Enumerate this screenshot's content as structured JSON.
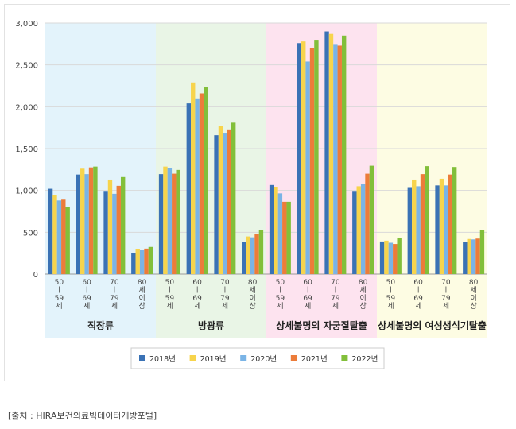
{
  "chart_data": {
    "type": "bar",
    "ylim": [
      0,
      3000
    ],
    "yticks": [
      "0",
      "500",
      "1,000",
      "1,500",
      "2,000",
      "2,500",
      "3,000"
    ],
    "ytick_values": [
      0,
      500,
      1000,
      1500,
      2000,
      2500,
      3000
    ],
    "grid": true,
    "legend_position": "bottom",
    "groups": [
      {
        "label": "직장류",
        "bg": "#e3f3fb",
        "categories": [
          {
            "lines": [
              "50",
              "ㅣ",
              "59",
              "세"
            ]
          },
          {
            "lines": [
              "60",
              "ㅣ",
              "69",
              "세"
            ]
          },
          {
            "lines": [
              "70",
              "ㅣ",
              "79",
              "세"
            ]
          },
          {
            "lines": [
              "80",
              "세",
              "이",
              "상"
            ]
          }
        ]
      },
      {
        "label": "방광류",
        "bg": "#e9f5e6",
        "categories": [
          {
            "lines": [
              "50",
              "ㅣ",
              "59",
              "세"
            ]
          },
          {
            "lines": [
              "60",
              "ㅣ",
              "69",
              "세"
            ]
          },
          {
            "lines": [
              "70",
              "ㅣ",
              "79",
              "세"
            ]
          },
          {
            "lines": [
              "80",
              "세",
              "이",
              "상"
            ]
          }
        ]
      },
      {
        "label": "상세불명의 자궁질탈출",
        "bg": "#fde3ef",
        "categories": [
          {
            "lines": [
              "50",
              "ㅣ",
              "59",
              "세"
            ]
          },
          {
            "lines": [
              "60",
              "ㅣ",
              "69",
              "세"
            ]
          },
          {
            "lines": [
              "70",
              "ㅣ",
              "79",
              "세"
            ]
          },
          {
            "lines": [
              "80",
              "세",
              "이",
              "상"
            ]
          }
        ]
      },
      {
        "label": "상세불명의 여성생식기탈출",
        "bg": "#fdfce3",
        "categories": [
          {
            "lines": [
              "50",
              "ㅣ",
              "59",
              "세"
            ]
          },
          {
            "lines": [
              "60",
              "ㅣ",
              "69",
              "세"
            ]
          },
          {
            "lines": [
              "70",
              "ㅣ",
              "79",
              "세"
            ]
          },
          {
            "lines": [
              "80",
              "세",
              "이",
              "상"
            ]
          }
        ]
      }
    ],
    "series": [
      {
        "name": "2018년",
        "color": "#3a72b5",
        "values": [
          1020,
          1190,
          985,
          255,
          1195,
          2040,
          1660,
          380,
          1065,
          2760,
          2900,
          985,
          390,
          1030,
          1060,
          380
        ]
      },
      {
        "name": "2019년",
        "color": "#f7d44c",
        "values": [
          945,
          1260,
          1130,
          295,
          1285,
          2290,
          1770,
          450,
          1040,
          2780,
          2870,
          1050,
          400,
          1130,
          1140,
          420
        ]
      },
      {
        "name": "2020년",
        "color": "#7ab4e6",
        "values": [
          880,
          1195,
          960,
          285,
          1270,
          2100,
          1680,
          440,
          965,
          2540,
          2740,
          1080,
          375,
          1050,
          1060,
          415
        ]
      },
      {
        "name": "2021년",
        "color": "#ec7c3a",
        "values": [
          890,
          1275,
          1055,
          305,
          1200,
          2160,
          1720,
          480,
          865,
          2700,
          2730,
          1200,
          360,
          1195,
          1190,
          425
        ]
      },
      {
        "name": "2022년",
        "color": "#82bf3a",
        "values": [
          805,
          1285,
          1160,
          325,
          1245,
          2240,
          1810,
          530,
          865,
          2800,
          2850,
          1295,
          430,
          1290,
          1280,
          525
        ]
      }
    ]
  },
  "source_text": "[출처 : HIRA보건의료빅데이터개방포털]"
}
